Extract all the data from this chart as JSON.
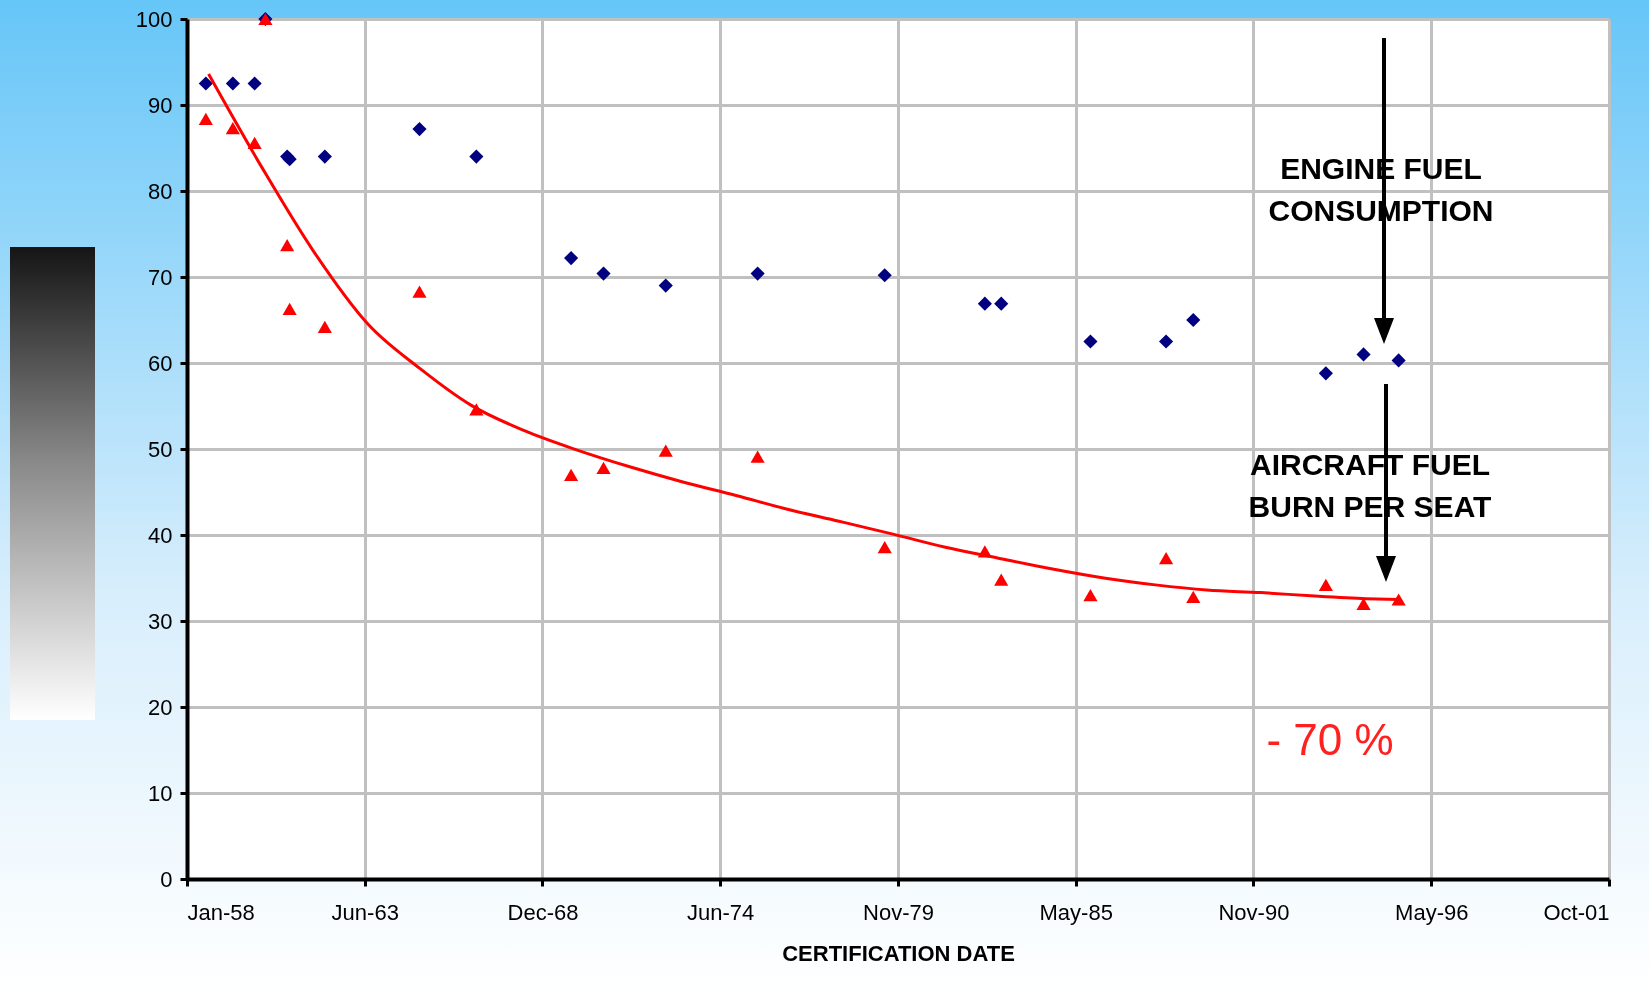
{
  "chart_data": {
    "type": "scatter",
    "xlabel": "CERTIFICATION DATE",
    "grid": true,
    "xlim": [
      "1958-01-01",
      "2001-10-23"
    ],
    "xticks": [
      {
        "value": "1958-01-01",
        "label": "Jan-58"
      },
      {
        "value": "1963-06-24",
        "label": "Jun-63"
      },
      {
        "value": "1968-12-14",
        "label": "Dec-68"
      },
      {
        "value": "1974-06-06",
        "label": "Jun-74"
      },
      {
        "value": "1979-11-27",
        "label": "Nov-79"
      },
      {
        "value": "1985-05-19",
        "label": "May-85"
      },
      {
        "value": "1990-11-09",
        "label": "Nov-90"
      },
      {
        "value": "1996-05-02",
        "label": "May-96"
      },
      {
        "value": "2001-10-23",
        "label": "Oct-01"
      }
    ],
    "ylim": [
      0,
      100
    ],
    "yticks": [
      0,
      10,
      20,
      30,
      40,
      50,
      60,
      70,
      80,
      90,
      100
    ],
    "series": [
      {
        "marker": "diamond",
        "color": "#000080",
        "x": [
          "1958-08",
          "1959-06",
          "1960-02",
          "1960-06",
          "1961-02",
          "1961-03",
          "1962-04",
          "1965-03",
          "1966-12",
          "1969-11",
          "1970-11",
          "1972-10",
          "1975-08",
          "1979-07",
          "1982-08",
          "1983-02",
          "1985-11",
          "1988-03",
          "1989-01",
          "1993-02",
          "1994-04",
          "1995-05"
        ],
        "values": [
          92.5,
          92.5,
          92.5,
          100,
          84,
          83.7,
          84,
          87.2,
          84,
          72.2,
          70.4,
          69,
          70.4,
          70.2,
          66.9,
          66.9,
          62.5,
          62.5,
          65,
          58.8,
          61,
          60.3
        ]
      },
      {
        "marker": "triangle",
        "color": "#ff0000",
        "x": [
          "1958-08",
          "1959-06",
          "1960-02",
          "1960-06",
          "1961-02",
          "1961-03",
          "1962-04",
          "1965-03",
          "1966-12",
          "1969-11",
          "1970-11",
          "1972-10",
          "1975-08",
          "1979-07",
          "1982-08",
          "1983-02",
          "1985-11",
          "1988-03",
          "1989-01",
          "1993-02",
          "1994-04",
          "1995-05"
        ],
        "values": [
          88.4,
          87.3,
          85.6,
          100,
          73.7,
          66.3,
          64.2,
          68.3,
          54.6,
          47,
          47.8,
          49.8,
          49.1,
          38.6,
          38.1,
          34.8,
          33,
          37.3,
          32.8,
          34.2,
          32,
          32.5
        ]
      },
      {
        "type": "line",
        "marker": "none",
        "color": "#ff0000",
        "x": [
          "1958-09",
          "1960-05",
          "1961-12",
          "1963-08",
          "1965-03",
          "1966-10",
          "1968-06",
          "1970-01",
          "1971-09",
          "1973-04",
          "1974-12",
          "1976-07",
          "1978-02",
          "1979-10",
          "1981-05",
          "1983-01",
          "1984-08",
          "1986-04",
          "1987-11",
          "1989-06",
          "1991-02",
          "1992-10",
          "1994-05",
          "1995-05"
        ],
        "values": [
          93.6,
          82.6,
          72.9,
          64.5,
          59.4,
          55.1,
          52.1,
          49.9,
          47.9,
          46.2,
          44.6,
          43,
          41.6,
          40.1,
          38.6,
          37.3,
          36.1,
          35,
          34.2,
          33.6,
          33.3,
          32.9,
          32.6,
          32.5
        ]
      }
    ],
    "annotations": [
      "ENGINE FUEL\nCONSUMPTION",
      "AIRCRAFT FUEL\nBURN PER SEAT",
      "- 70 %"
    ]
  }
}
